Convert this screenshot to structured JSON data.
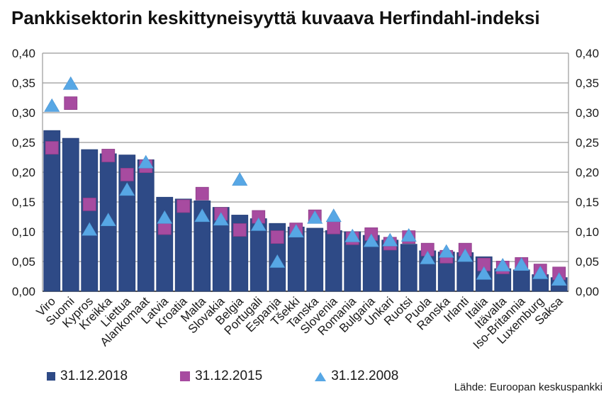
{
  "chart_data": {
    "type": "bar",
    "title": "Pankkisektorin keskittyneisyyttä kuvaava Herfindahl-indeksi",
    "categories": [
      "Viro",
      "Suomi",
      "Kypros",
      "Kreikka",
      "Liettua",
      "Alankomaat",
      "Latvia",
      "Kroatia",
      "Malta",
      "Slovakia",
      "Belgia",
      "Portugali",
      "Espanja",
      "Tšekki",
      "Tanska",
      "Slovenia",
      "Romania",
      "Bulgaria",
      "Unkari",
      "Ruotsi",
      "Puola",
      "Ranska",
      "Irlanti",
      "Italia",
      "Itävalta",
      "Iso-Britannia",
      "Luxemburg",
      "Saksa"
    ],
    "series": [
      {
        "name": "31.12.2018",
        "style": "bar",
        "color": "#2E4A86",
        "values": [
          0.27,
          0.257,
          0.238,
          0.231,
          0.229,
          0.221,
          0.158,
          0.155,
          0.152,
          0.141,
          0.128,
          0.122,
          0.114,
          0.108,
          0.106,
          0.102,
          0.1,
          0.094,
          0.086,
          0.079,
          0.068,
          0.066,
          0.065,
          0.058,
          0.038,
          0.036,
          0.028,
          0.023
        ]
      },
      {
        "name": "31.12.2015",
        "style": "square",
        "color": "#A74BA0",
        "values": [
          0.241,
          0.316,
          0.146,
          0.228,
          0.196,
          0.21,
          0.106,
          0.143,
          0.164,
          0.13,
          0.103,
          0.125,
          0.091,
          0.104,
          0.126,
          0.107,
          0.089,
          0.096,
          0.08,
          0.091,
          0.07,
          0.058,
          0.07,
          0.045,
          0.04,
          0.046,
          0.035,
          0.03
        ]
      },
      {
        "name": "31.12.2008",
        "style": "triangle",
        "color": "#57A7E5",
        "values": [
          0.312,
          0.349,
          0.104,
          0.12,
          0.171,
          0.217,
          0.124,
          null,
          0.127,
          0.121,
          0.188,
          0.112,
          0.05,
          0.101,
          0.124,
          0.127,
          0.093,
          0.085,
          0.086,
          0.094,
          0.056,
          0.067,
          0.06,
          0.03,
          0.044,
          0.045,
          0.031,
          0.02
        ]
      }
    ],
    "ylim": [
      0,
      0.4
    ],
    "ytick_step": 0.05,
    "y_tick_labels": [
      "0,00",
      "0,05",
      "0,10",
      "0,15",
      "0,20",
      "0,25",
      "0,30",
      "0,35",
      "0,40"
    ],
    "grid": "horizontal-gray",
    "legend_position": "bottom-left",
    "colors": {
      "grid": "#999999",
      "frame": "#999999",
      "axis": "#1a1a1a",
      "text": "#1a1a1a"
    }
  },
  "source": "Lähde: Euroopan keskuspankki"
}
